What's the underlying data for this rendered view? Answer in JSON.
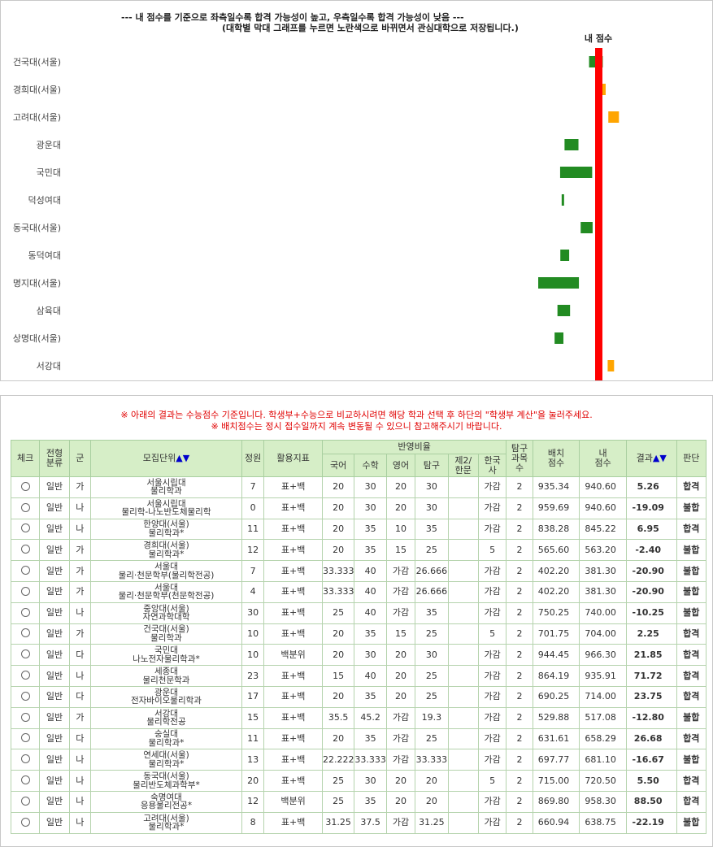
{
  "chart": {
    "title_line1": "--- 내 점수를 기준으로 좌측일수록 합격 가능성이 높고, 우측일수록 합격 가능성이 낮음 ---",
    "title_line2": "(대학별 막대 그래프를 누르면 노란색으로 바뀌면서 관심대학으로 저장됩니다.)",
    "my_score_label": "내 점수",
    "colors": {
      "green": "#228b22",
      "orange": "#ffa500",
      "red": "#ff0000"
    }
  },
  "chart_data": {
    "type": "bar",
    "orientation": "horizontal-range",
    "categories": [
      "건국대(서울)",
      "경희대(서울)",
      "고려대(서울)",
      "광운대",
      "국민대",
      "덕성여대",
      "동국대(서울)",
      "동덕여대",
      "명지대(서울)",
      "삼육대",
      "상명대(서울)",
      "서강대"
    ],
    "series": [
      {
        "values": [
          [
            -4.2,
            2.0
          ],
          [
            -0.5,
            3.3
          ],
          [
            4.5,
            9.3
          ],
          [
            -15.3,
            -9.0
          ],
          [
            -17.3,
            -2.8
          ],
          [
            -16.6,
            -15.5
          ],
          [
            -8.0,
            -2.6
          ],
          [
            -17.2,
            -13.2
          ],
          [
            -27.2,
            -8.8
          ],
          [
            -18.5,
            -12.8
          ],
          [
            -19.8,
            -15.8
          ],
          [
            4.2,
            7.1
          ]
        ],
        "colors": [
          "#228b22",
          "#ffa500",
          "#ffa500",
          "#228b22",
          "#228b22",
          "#228b22",
          "#228b22",
          "#228b22",
          "#228b22",
          "#228b22",
          "#228b22",
          "#ffa500"
        ]
      }
    ],
    "reference_line": {
      "value": 0,
      "label": "내 점수"
    },
    "xlim": [
      -160,
      32
    ],
    "grid": false
  },
  "table": {
    "notice1": "※ 아래의 결과는 수능점수 기준입니다. 학생부+수능으로 비교하시려면 해당 학과 선택 후 하단의 \"학생부 계산\"을 눌러주세요.",
    "notice2": "※ 배치점수는 정시 접수일까지 계속 변동될 수 있으니 참고해주시기 바랍니다.",
    "headers": {
      "check": "체크",
      "type": "전형\n분류",
      "group": "군",
      "unit": "모집단위",
      "unit_sort": "▲▼",
      "quota": "정원",
      "index": "활용지표",
      "ratio": "반영비율",
      "kor": "국어",
      "math": "수학",
      "eng": "영어",
      "inq": "탐구",
      "lang2": "제2/\n한문",
      "hist": "한국\n사",
      "inq_cnt": "탐구\n과목\n수",
      "cut": "배치\n점수",
      "my": "내\n점수",
      "result": "결과",
      "result_sort": "▲▼",
      "verdict": "판단"
    },
    "rows": [
      {
        "type": "일반",
        "group": "가",
        "univ": "서울시립대",
        "dept": "물리학과",
        "quota": "7",
        "index": "표+백",
        "kor": "20",
        "math": "30",
        "eng": "20",
        "inq": "30",
        "lang2": "",
        "hist": "가감",
        "inq_cnt": "2",
        "cut": "935.34",
        "my": "940.60",
        "result": "5.26",
        "verdict": "합격"
      },
      {
        "type": "일반",
        "group": "나",
        "univ": "서울시립대",
        "dept": "물리학-나노반도체물리학",
        "quota": "0",
        "index": "표+백",
        "kor": "20",
        "math": "30",
        "eng": "20",
        "inq": "30",
        "lang2": "",
        "hist": "가감",
        "inq_cnt": "2",
        "cut": "959.69",
        "my": "940.60",
        "result": "-19.09",
        "verdict": "불합"
      },
      {
        "type": "일반",
        "group": "나",
        "univ": "한양대(서울)",
        "dept": "물리학과*",
        "quota": "11",
        "index": "표+백",
        "kor": "20",
        "math": "35",
        "eng": "10",
        "inq": "35",
        "lang2": "",
        "hist": "가감",
        "inq_cnt": "2",
        "cut": "838.28",
        "my": "845.22",
        "result": "6.95",
        "verdict": "합격"
      },
      {
        "type": "일반",
        "group": "가",
        "univ": "경희대(서울)",
        "dept": "물리학과*",
        "quota": "12",
        "index": "표+백",
        "kor": "20",
        "math": "35",
        "eng": "15",
        "inq": "25",
        "lang2": "",
        "hist": "5",
        "inq_cnt": "2",
        "cut": "565.60",
        "my": "563.20",
        "result": "-2.40",
        "verdict": "불합"
      },
      {
        "type": "일반",
        "group": "가",
        "univ": "서울대",
        "dept": "물리·천문학부(물리학전공)",
        "quota": "7",
        "index": "표+백",
        "kor": "33.333",
        "math": "40",
        "eng": "가감",
        "inq": "26.666",
        "lang2": "",
        "hist": "가감",
        "inq_cnt": "2",
        "cut": "402.20",
        "my": "381.30",
        "result": "-20.90",
        "verdict": "불합"
      },
      {
        "type": "일반",
        "group": "가",
        "univ": "서울대",
        "dept": "물리·천문학부(천문학전공)",
        "quota": "4",
        "index": "표+백",
        "kor": "33.333",
        "math": "40",
        "eng": "가감",
        "inq": "26.666",
        "lang2": "",
        "hist": "가감",
        "inq_cnt": "2",
        "cut": "402.20",
        "my": "381.30",
        "result": "-20.90",
        "verdict": "불합"
      },
      {
        "type": "일반",
        "group": "나",
        "univ": "중앙대(서울)",
        "dept": "자연과학대학",
        "quota": "30",
        "index": "표+백",
        "kor": "25",
        "math": "40",
        "eng": "가감",
        "inq": "35",
        "lang2": "",
        "hist": "가감",
        "inq_cnt": "2",
        "cut": "750.25",
        "my": "740.00",
        "result": "-10.25",
        "verdict": "불합"
      },
      {
        "type": "일반",
        "group": "가",
        "univ": "건국대(서울)",
        "dept": "물리학과",
        "quota": "10",
        "index": "표+백",
        "kor": "20",
        "math": "35",
        "eng": "15",
        "inq": "25",
        "lang2": "",
        "hist": "5",
        "inq_cnt": "2",
        "cut": "701.75",
        "my": "704.00",
        "result": "2.25",
        "verdict": "합격"
      },
      {
        "type": "일반",
        "group": "다",
        "univ": "국민대",
        "dept": "나노전자물리학과*",
        "quota": "10",
        "index": "백분위",
        "kor": "20",
        "math": "30",
        "eng": "20",
        "inq": "30",
        "lang2": "",
        "hist": "가감",
        "inq_cnt": "2",
        "cut": "944.45",
        "my": "966.30",
        "result": "21.85",
        "verdict": "합격"
      },
      {
        "type": "일반",
        "group": "나",
        "univ": "세종대",
        "dept": "물리천문학과",
        "quota": "23",
        "index": "표+백",
        "kor": "15",
        "math": "40",
        "eng": "20",
        "inq": "25",
        "lang2": "",
        "hist": "가감",
        "inq_cnt": "2",
        "cut": "864.19",
        "my": "935.91",
        "result": "71.72",
        "verdict": "합격"
      },
      {
        "type": "일반",
        "group": "다",
        "univ": "광운대",
        "dept": "전자바이오물리학과",
        "quota": "17",
        "index": "표+백",
        "kor": "20",
        "math": "35",
        "eng": "20",
        "inq": "25",
        "lang2": "",
        "hist": "가감",
        "inq_cnt": "2",
        "cut": "690.25",
        "my": "714.00",
        "result": "23.75",
        "verdict": "합격"
      },
      {
        "type": "일반",
        "group": "가",
        "univ": "서강대",
        "dept": "물리학전공",
        "quota": "15",
        "index": "표+백",
        "kor": "35.5",
        "math": "45.2",
        "eng": "가감",
        "inq": "19.3",
        "lang2": "",
        "hist": "가감",
        "inq_cnt": "2",
        "cut": "529.88",
        "my": "517.08",
        "result": "-12.80",
        "verdict": "불합"
      },
      {
        "type": "일반",
        "group": "다",
        "univ": "숭실대",
        "dept": "물리학과*",
        "quota": "11",
        "index": "표+백",
        "kor": "20",
        "math": "35",
        "eng": "가감",
        "inq": "25",
        "lang2": "",
        "hist": "가감",
        "inq_cnt": "2",
        "cut": "631.61",
        "my": "658.29",
        "result": "26.68",
        "verdict": "합격"
      },
      {
        "type": "일반",
        "group": "나",
        "univ": "연세대(서울)",
        "dept": "물리학과*",
        "quota": "13",
        "index": "표+백",
        "kor": "22.222",
        "math": "33.333",
        "eng": "가감",
        "inq": "33.333",
        "lang2": "",
        "hist": "가감",
        "inq_cnt": "2",
        "cut": "697.77",
        "my": "681.10",
        "result": "-16.67",
        "verdict": "불합"
      },
      {
        "type": "일반",
        "group": "나",
        "univ": "동국대(서울)",
        "dept": "물리반도체과학부*",
        "quota": "20",
        "index": "표+백",
        "kor": "25",
        "math": "30",
        "eng": "20",
        "inq": "20",
        "lang2": "",
        "hist": "5",
        "inq_cnt": "2",
        "cut": "715.00",
        "my": "720.50",
        "result": "5.50",
        "verdict": "합격"
      },
      {
        "type": "일반",
        "group": "나",
        "univ": "숙명여대",
        "dept": "응용물리전공*",
        "quota": "12",
        "index": "백분위",
        "kor": "25",
        "math": "35",
        "eng": "20",
        "inq": "20",
        "lang2": "",
        "hist": "가감",
        "inq_cnt": "2",
        "cut": "869.80",
        "my": "958.30",
        "result": "88.50",
        "verdict": "합격"
      },
      {
        "type": "일반",
        "group": "나",
        "univ": "고려대(서울)",
        "dept": "물리학과*",
        "quota": "8",
        "index": "표+백",
        "kor": "31.25",
        "math": "37.5",
        "eng": "가감",
        "inq": "31.25",
        "lang2": "",
        "hist": "가감",
        "inq_cnt": "2",
        "cut": "660.94",
        "my": "638.75",
        "result": "-22.19",
        "verdict": "불합"
      }
    ]
  }
}
